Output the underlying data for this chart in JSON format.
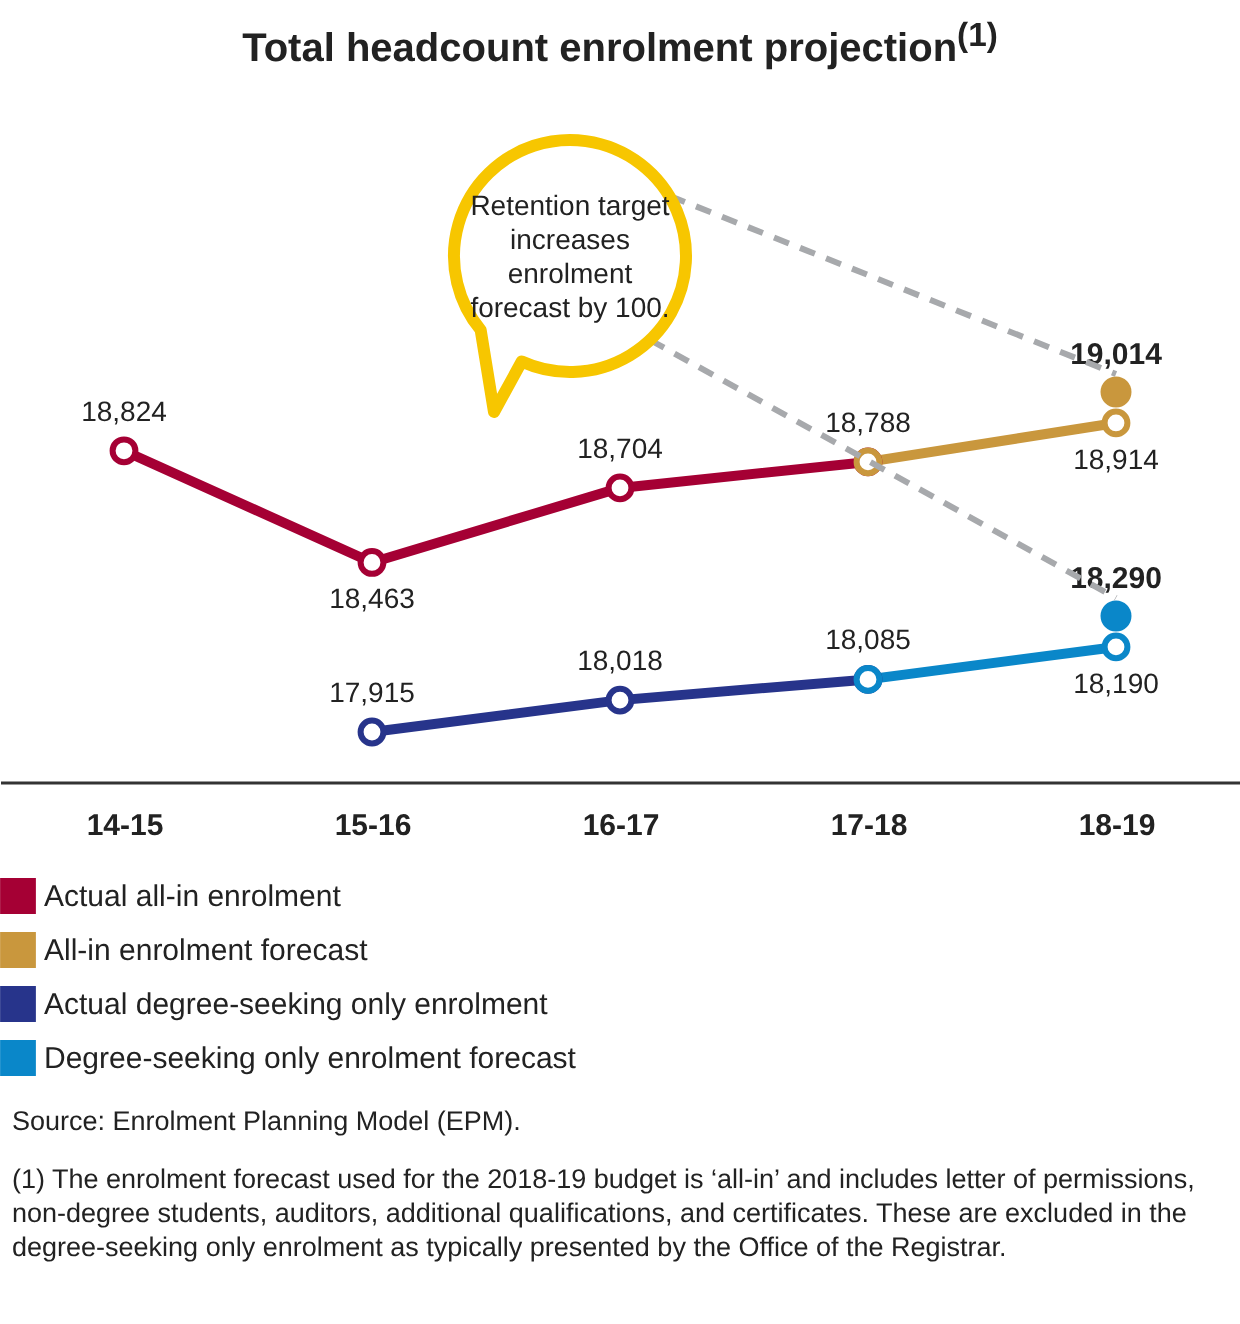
{
  "chart_data": {
    "type": "line",
    "title": "Total headcount enrolment projection$^{(1)}$",
    "categories": [
      "14-15",
      "15-16",
      "16-17",
      "17-18",
      "18-19"
    ],
    "series": [
      {
        "name": "Actual all-in enrolment",
        "color": "#a50034",
        "values": [
          18824,
          18463,
          18704,
          18788,
          null
        ],
        "value_labels": [
          "18,824",
          "18,463",
          "18,704",
          "18,788",
          null
        ]
      },
      {
        "name": "All-in enrolment forecast",
        "color": "#c9973d",
        "values": [
          null,
          null,
          null,
          18788,
          18914
        ],
        "value_labels": [
          null,
          null,
          null,
          null,
          "18,914"
        ]
      },
      {
        "name": "Actual degree-seeking only enrolment",
        "color": "#27348b",
        "values": [
          null,
          17915,
          18018,
          18085,
          null
        ],
        "value_labels": [
          null,
          "17,915",
          "18,018",
          "18,085",
          null
        ]
      },
      {
        "name": "Degree-seeking only enrolment forecast",
        "color": "#0a87c9",
        "values": [
          null,
          null,
          null,
          18085,
          18190
        ],
        "value_labels": [
          null,
          null,
          null,
          null,
          "18,190"
        ]
      },
      {
        "type": "scatter",
        "color": "#c9973d",
        "values": [
          null,
          null,
          null,
          null,
          19014
        ],
        "value_labels": [
          null,
          null,
          null,
          null,
          "19,014"
        ]
      },
      {
        "type": "scatter",
        "color": "#0a87c9",
        "values": [
          null,
          null,
          null,
          null,
          18290
        ],
        "value_labels": [
          null,
          null,
          null,
          null,
          "18,290"
        ]
      }
    ],
    "marker": "circle",
    "line_style": "solid",
    "legend": "bottom",
    "tick_labels": "x",
    "annotations": [
      "Retention target increases enrolment forecast by 100.",
      "Source: Enrolment Planning Model (EPM).",
      "(1) The enrolment forecast used for the 2018-19 budget is ‘all-in’ and includes letter of permissions, non-degree students, auditors, additional qualifications, and certificates. These are excluded in the degree-seeking only enrolment as typically presented by the Office of the Registrar."
    ]
  }
}
